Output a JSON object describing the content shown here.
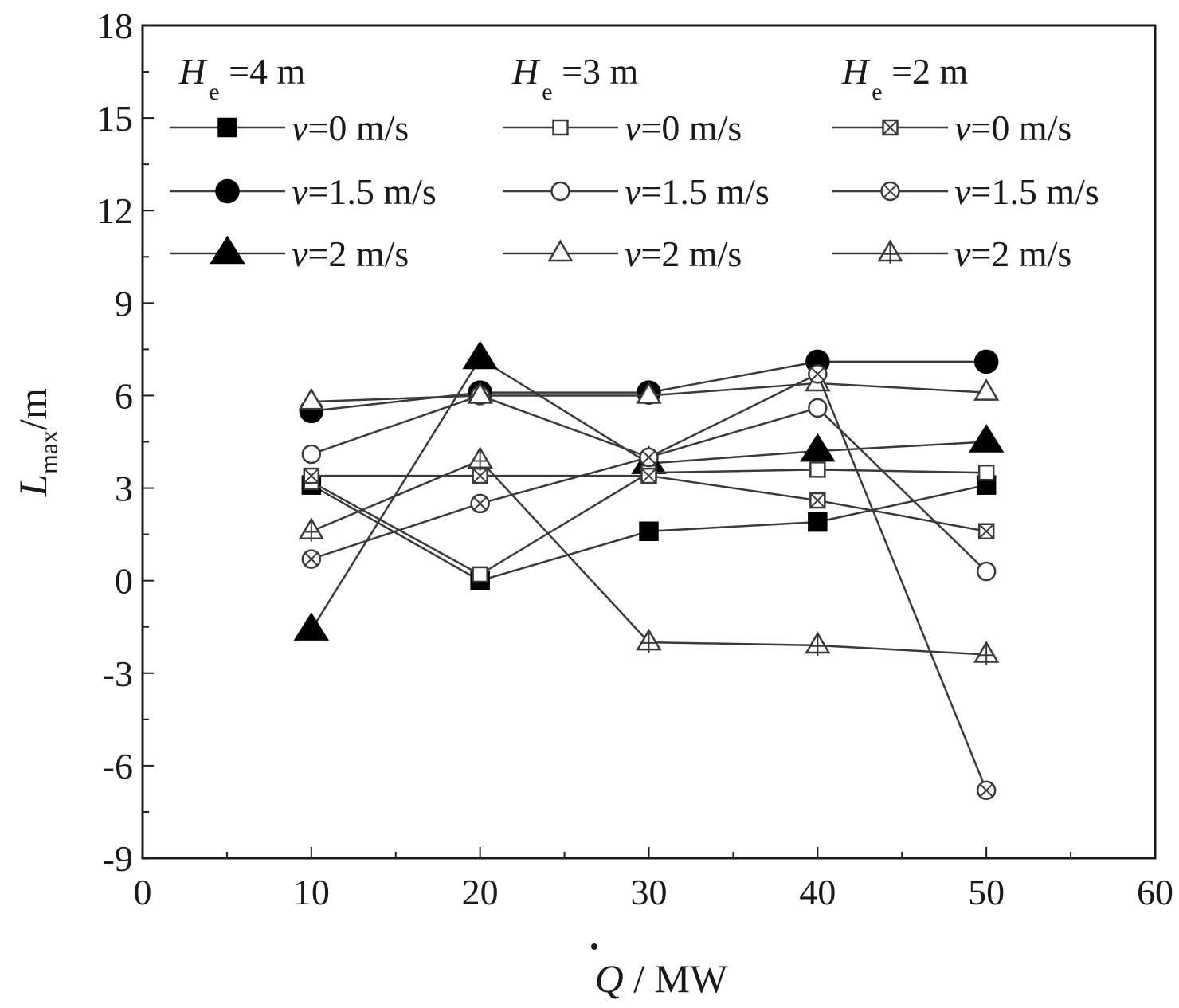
{
  "chart_data": {
    "type": "line",
    "xlabel": {
      "symbol": "Q",
      "unit": " / MW"
    },
    "ylabel": {
      "symbol": "L",
      "sub": "max",
      "unit": "/m"
    },
    "xlim": [
      0,
      60
    ],
    "ylim": [
      -9,
      18
    ],
    "xticks": [
      "0",
      "10",
      "20",
      "30",
      "40",
      "50",
      "60"
    ],
    "yticks": [
      "-9",
      "-6",
      "-3",
      "0",
      "3",
      "6",
      "9",
      "12",
      "15",
      "18"
    ],
    "grid": false,
    "legend_position": "top",
    "legend_groups": [
      {
        "symbol": "H",
        "sub": "e",
        "value": " =4 m"
      },
      {
        "symbol": "H",
        "sub": "e",
        "value": " =3 m"
      },
      {
        "symbol": "H",
        "sub": "e",
        "value": " =2 m"
      }
    ],
    "x": [
      10,
      20,
      30,
      40,
      50
    ],
    "series": [
      {
        "group": 0,
        "v_symbol": "v",
        "v_label": "=0 m/s",
        "marker": "square-filled",
        "values": [
          3.1,
          0.0,
          1.6,
          1.9,
          3.1
        ]
      },
      {
        "group": 0,
        "v_symbol": "v",
        "v_label": "=1.5 m/s",
        "marker": "circle-filled",
        "values": [
          5.5,
          6.1,
          6.1,
          7.1,
          7.1
        ]
      },
      {
        "group": 0,
        "v_symbol": "v",
        "v_label": "=2 m/s",
        "marker": "triangle-filled",
        "values": [
          -1.6,
          7.2,
          3.8,
          4.2,
          4.5
        ]
      },
      {
        "group": 1,
        "v_symbol": "v",
        "v_label": "=0 m/s",
        "marker": "square-open",
        "values": [
          3.2,
          0.2,
          3.5,
          3.6,
          3.5
        ]
      },
      {
        "group": 1,
        "v_symbol": "v",
        "v_label": "=1.5 m/s",
        "marker": "circle-open",
        "values": [
          4.1,
          6.0,
          4.0,
          5.6,
          0.3
        ]
      },
      {
        "group": 1,
        "v_symbol": "v",
        "v_label": "=2 m/s",
        "marker": "triangle-open",
        "values": [
          5.8,
          6.0,
          6.0,
          6.4,
          6.1
        ]
      },
      {
        "group": 2,
        "v_symbol": "v",
        "v_label": "=0 m/s",
        "marker": "square-x",
        "values": [
          3.4,
          3.4,
          3.4,
          2.6,
          1.6
        ]
      },
      {
        "group": 2,
        "v_symbol": "v",
        "v_label": "=1.5 m/s",
        "marker": "circle-x",
        "values": [
          0.7,
          2.5,
          4.0,
          6.7,
          -6.8
        ]
      },
      {
        "group": 2,
        "v_symbol": "v",
        "v_label": "=2 m/s",
        "marker": "triangle-plus",
        "values": [
          1.6,
          3.9,
          -2.0,
          -2.1,
          -2.4
        ]
      }
    ],
    "colors": {
      "line": "#3a3a3a",
      "marker_filled": "#000000",
      "marker_stroke": "#3a3a3a",
      "axis": "#1a1a1a"
    }
  }
}
